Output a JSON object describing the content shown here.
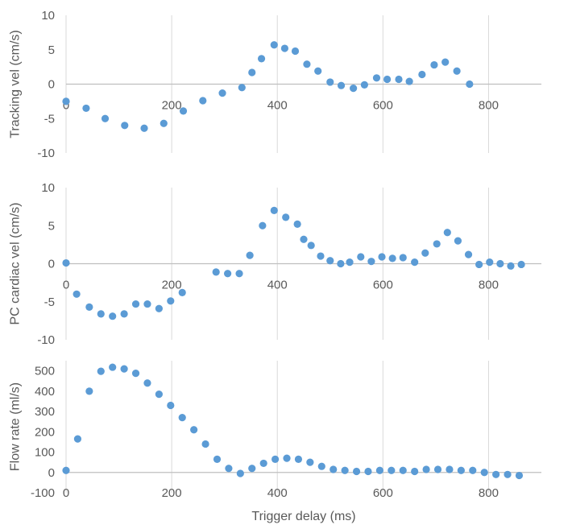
{
  "chart_data": [
    {
      "type": "scatter",
      "title": "",
      "xlabel": "",
      "ylabel": "Tracking vel (cm/s)",
      "xlim": [
        0,
        900
      ],
      "ylim": [
        -10,
        10
      ],
      "xticks": [
        0,
        200,
        400,
        600,
        800
      ],
      "yticks": [
        -10,
        -5,
        0,
        5,
        10
      ],
      "xtick_labels": [
        "0",
        "200",
        "400",
        "600",
        "800"
      ],
      "ytick_labels": [
        "-10",
        "-5",
        "0",
        "5",
        "10"
      ],
      "grid": "vertical",
      "series": [
        {
          "name": "Tracking vel",
          "color": "#5B9BD5",
          "x": [
            0,
            38,
            74,
            111,
            148,
            185,
            222,
            259,
            296,
            333,
            352,
            370,
            394,
            414,
            434,
            456,
            477,
            500,
            521,
            544,
            565,
            588,
            608,
            630,
            650,
            674,
            697,
            718,
            740,
            764
          ],
          "y": [
            -2.5,
            -3.5,
            -5.0,
            -6.0,
            -6.4,
            -5.7,
            -3.9,
            -2.4,
            -1.3,
            -0.5,
            1.7,
            3.7,
            5.7,
            5.2,
            4.8,
            2.9,
            1.9,
            0.3,
            -0.2,
            -0.6,
            -0.1,
            0.9,
            0.7,
            0.7,
            0.4,
            1.4,
            2.8,
            3.2,
            1.9,
            0.0
          ]
        }
      ]
    },
    {
      "type": "scatter",
      "title": "",
      "xlabel": "",
      "ylabel": "PC cardiac vel (cm/s)",
      "xlim": [
        0,
        900
      ],
      "ylim": [
        -10,
        10
      ],
      "xticks": [
        0,
        200,
        400,
        600,
        800
      ],
      "yticks": [
        -10,
        -5,
        0,
        5,
        10
      ],
      "xtick_labels": [
        "0",
        "200",
        "400",
        "600",
        "800"
      ],
      "ytick_labels": [
        "-10",
        "-5",
        "0",
        "5",
        "10"
      ],
      "grid": "vertical",
      "series": [
        {
          "name": "PC cardiac vel",
          "color": "#5B9BD5",
          "x": [
            0,
            20,
            44,
            66,
            88,
            110,
            132,
            154,
            176,
            198,
            220,
            284,
            306,
            328,
            348,
            372,
            394,
            416,
            438,
            450,
            464,
            482,
            500,
            520,
            537,
            558,
            578,
            598,
            618,
            638,
            660,
            680,
            702,
            722,
            742,
            762,
            782,
            802,
            822,
            842,
            862
          ],
          "y": [
            0.1,
            -4.0,
            -5.7,
            -6.6,
            -6.9,
            -6.6,
            -5.3,
            -5.3,
            -5.9,
            -4.9,
            -3.8,
            -1.1,
            -1.3,
            -1.3,
            1.1,
            5.0,
            7.0,
            6.1,
            5.2,
            3.2,
            2.4,
            1.0,
            0.4,
            0.0,
            0.2,
            0.9,
            0.3,
            0.9,
            0.7,
            0.8,
            0.2,
            1.4,
            2.6,
            4.1,
            3.0,
            1.2,
            -0.1,
            0.2,
            0.0,
            -0.3,
            -0.1
          ]
        }
      ]
    },
    {
      "type": "scatter",
      "title": "",
      "xlabel": "Trigger delay (ms)",
      "ylabel": "Flow rate (ml/s)",
      "xlim": [
        0,
        900
      ],
      "ylim": [
        -100,
        550
      ],
      "xticks": [
        0,
        200,
        400,
        600,
        800
      ],
      "yticks": [
        -100,
        0,
        100,
        200,
        300,
        400,
        500
      ],
      "xtick_labels": [
        "0",
        "200",
        "400",
        "600",
        "800"
      ],
      "ytick_labels": [
        "-100",
        "0",
        "100",
        "200",
        "300",
        "400",
        "500"
      ],
      "grid": "vertical",
      "series": [
        {
          "name": "Flow rate",
          "color": "#5B9BD5",
          "x": [
            0,
            22,
            44,
            66,
            88,
            110,
            132,
            154,
            176,
            198,
            220,
            242,
            264,
            286,
            308,
            330,
            352,
            374,
            396,
            418,
            440,
            462,
            484,
            506,
            528,
            550,
            572,
            594,
            616,
            638,
            660,
            682,
            704,
            726,
            748,
            770,
            792,
            814,
            836,
            858
          ],
          "y": [
            10,
            165,
            400,
            498,
            518,
            510,
            488,
            440,
            385,
            330,
            270,
            210,
            140,
            65,
            20,
            -5,
            20,
            45,
            65,
            70,
            65,
            50,
            30,
            15,
            10,
            5,
            5,
            10,
            10,
            10,
            5,
            15,
            15,
            15,
            10,
            10,
            0,
            -10,
            -10,
            -15
          ]
        }
      ]
    }
  ]
}
